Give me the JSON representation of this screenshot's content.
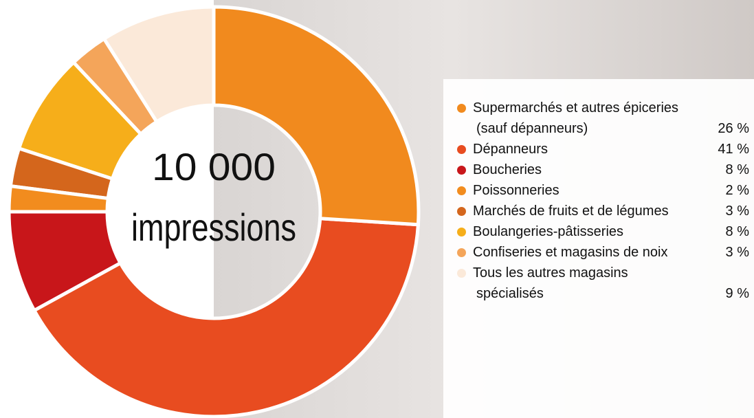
{
  "chart_data": {
    "type": "pie",
    "center_text": [
      "10 000",
      "impressions"
    ],
    "categories": [
      "Supermarchés et autres épiceries (sauf dépanneurs)",
      "Dépanneurs",
      "Boucheries",
      "Poissonneries",
      "Marchés de fruits et de légumes",
      "Boulangeries-pâtisseries",
      "Confiseries et magasins de noix",
      "Tous les autres magasins spécialisés"
    ],
    "values": [
      26,
      41,
      8,
      2,
      3,
      8,
      3,
      9
    ],
    "value_labels": [
      "26 %",
      "41 %",
      "8 %",
      "2 %",
      "3 %",
      "8 %",
      "3 %",
      "9 %"
    ],
    "colors": [
      "#f18a1e",
      "#e84c20",
      "#c8161a",
      "#f28c1e",
      "#d4661c",
      "#f6ae1a",
      "#f4a55a",
      "#fbe9d9"
    ]
  }
}
